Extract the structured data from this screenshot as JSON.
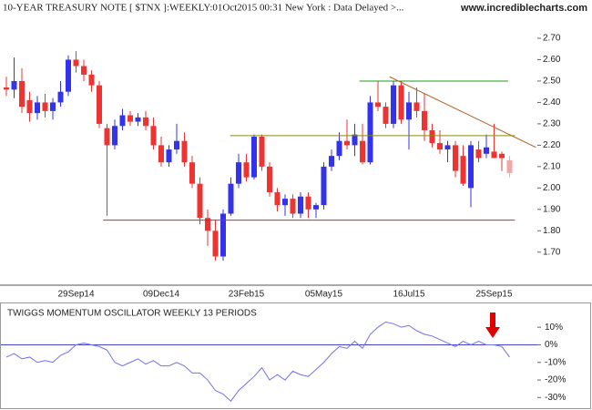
{
  "header": {
    "title": "10-YEAR TREASURY NOTE [ $TNX ]:WEEKLY:01Oct2015 00:31 New York : Data Delayed >...",
    "site": "www.incrediblecharts.com"
  },
  "chart_data": [
    {
      "type": "candlestick",
      "categories": [
        null,
        null,
        null,
        null,
        null,
        null,
        null,
        null,
        null,
        "29Sep14",
        null,
        null,
        null,
        null,
        null,
        null,
        null,
        null,
        null,
        null,
        "09Dec14",
        null,
        null,
        null,
        null,
        null,
        null,
        null,
        null,
        null,
        null,
        "23Feb15",
        null,
        null,
        null,
        null,
        null,
        null,
        null,
        null,
        null,
        "05May15",
        null,
        null,
        null,
        null,
        null,
        null,
        null,
        null,
        null,
        null,
        "16Jul15",
        null,
        null,
        null,
        null,
        null,
        null,
        null,
        null,
        null,
        null,
        "25Sep15",
        null,
        null
      ],
      "candles": [
        [
          2.47,
          2.52,
          2.43,
          2.46
        ],
        [
          2.46,
          2.61,
          2.42,
          2.5
        ],
        [
          2.5,
          2.56,
          2.35,
          2.38
        ],
        [
          2.41,
          2.45,
          2.31,
          2.35
        ],
        [
          2.35,
          2.43,
          2.32,
          2.4
        ],
        [
          2.4,
          2.44,
          2.33,
          2.36
        ],
        [
          2.36,
          2.42,
          2.32,
          2.4
        ],
        [
          2.4,
          2.5,
          2.38,
          2.45
        ],
        [
          2.45,
          2.62,
          2.43,
          2.6
        ],
        [
          2.6,
          2.64,
          2.54,
          2.57
        ],
        [
          2.57,
          2.6,
          2.5,
          2.53
        ],
        [
          2.53,
          2.55,
          2.45,
          2.48
        ],
        [
          2.48,
          2.5,
          2.28,
          2.3
        ],
        [
          2.28,
          2.3,
          1.87,
          2.2
        ],
        [
          2.2,
          2.32,
          2.18,
          2.29
        ],
        [
          2.29,
          2.37,
          2.27,
          2.34
        ],
        [
          2.34,
          2.36,
          2.29,
          2.31
        ],
        [
          2.31,
          2.35,
          2.29,
          2.33
        ],
        [
          2.33,
          2.36,
          2.27,
          2.29
        ],
        [
          2.29,
          2.33,
          2.18,
          2.2
        ],
        [
          2.2,
          2.24,
          2.1,
          2.12
        ],
        [
          2.12,
          2.2,
          2.1,
          2.18
        ],
        [
          2.18,
          2.3,
          2.16,
          2.22
        ],
        [
          2.22,
          2.26,
          2.1,
          2.12
        ],
        [
          2.12,
          2.15,
          2.0,
          2.02
        ],
        [
          2.02,
          2.05,
          1.83,
          1.86
        ],
        [
          1.86,
          1.9,
          1.73,
          1.8
        ],
        [
          1.8,
          1.85,
          1.66,
          1.68
        ],
        [
          1.68,
          1.9,
          1.66,
          1.88
        ],
        [
          1.88,
          2.05,
          1.87,
          2.02
        ],
        [
          2.02,
          2.16,
          2.0,
          2.12
        ],
        [
          2.12,
          2.16,
          2.03,
          2.05
        ],
        [
          2.05,
          2.25,
          2.04,
          2.24
        ],
        [
          2.24,
          2.25,
          2.08,
          2.1
        ],
        [
          2.1,
          2.12,
          1.96,
          1.98
        ],
        [
          1.98,
          2.0,
          1.89,
          1.92
        ],
        [
          1.92,
          1.97,
          1.87,
          1.95
        ],
        [
          1.95,
          1.97,
          1.86,
          1.88
        ],
        [
          1.88,
          1.98,
          1.86,
          1.96
        ],
        [
          1.96,
          1.98,
          1.86,
          1.9
        ],
        [
          1.9,
          1.93,
          1.86,
          1.92
        ],
        [
          1.92,
          2.12,
          1.9,
          2.1
        ],
        [
          2.1,
          2.18,
          2.08,
          2.15
        ],
        [
          2.15,
          2.26,
          2.13,
          2.22
        ],
        [
          2.22,
          2.32,
          2.18,
          2.2
        ],
        [
          2.2,
          2.3,
          2.15,
          2.25
        ],
        [
          2.22,
          2.3,
          2.11,
          2.12
        ],
        [
          2.12,
          2.43,
          2.11,
          2.4
        ],
        [
          2.4,
          2.5,
          2.36,
          2.38
        ],
        [
          2.38,
          2.4,
          2.28,
          2.3
        ],
        [
          2.3,
          2.5,
          2.28,
          2.48
        ],
        [
          2.48,
          2.5,
          2.3,
          2.32
        ],
        [
          2.32,
          2.45,
          2.18,
          2.4
        ],
        [
          2.4,
          2.47,
          2.33,
          2.36
        ],
        [
          2.36,
          2.44,
          2.22,
          2.27
        ],
        [
          2.27,
          2.3,
          2.19,
          2.21
        ],
        [
          2.21,
          2.27,
          2.16,
          2.18
        ],
        [
          2.18,
          2.22,
          2.12,
          2.2
        ],
        [
          2.2,
          2.22,
          2.05,
          2.08
        ],
        [
          2.15,
          2.2,
          2.01,
          2.02
        ],
        [
          2.0,
          2.22,
          1.91,
          2.2
        ],
        [
          2.18,
          2.22,
          2.12,
          2.14
        ],
        [
          2.16,
          2.25,
          2.14,
          2.19
        ],
        [
          2.17,
          2.3,
          2.14,
          2.14
        ],
        [
          2.16,
          2.17,
          2.08,
          2.14
        ],
        [
          2.13,
          2.15,
          2.05,
          2.07
        ]
      ],
      "up_color": "#3333ee",
      "down_color": "#ee3333",
      "partial_color": "#f4a6a6",
      "ylim": [
        1.55,
        2.815
      ],
      "yticks": [
        {
          "value": 1.7,
          "label": "1.70"
        },
        {
          "value": 1.8,
          "label": "1.80"
        },
        {
          "value": 1.9,
          "label": "1.90"
        },
        {
          "value": 2.0,
          "label": "2.00"
        },
        {
          "value": 2.1,
          "label": "2.10"
        },
        {
          "value": 2.2,
          "label": "2.20"
        },
        {
          "value": 2.3,
          "label": "2.30"
        },
        {
          "value": 2.4,
          "label": "2.40"
        },
        {
          "value": 2.5,
          "label": "2.50"
        },
        {
          "value": 2.6,
          "label": "2.60"
        },
        {
          "value": 2.7,
          "label": "2.70"
        }
      ],
      "lines": [
        {
          "color": "#dd2222",
          "from": [
            12.5,
            1.85
          ],
          "to": [
            65.7,
            1.85
          ]
        },
        {
          "color": "#8a8a10",
          "from": [
            28.9,
            2.245
          ],
          "to": [
            65.7,
            2.245
          ]
        },
        {
          "color": "#1a9a1a",
          "from": [
            45.6,
            2.5
          ],
          "to": [
            64.8,
            2.5
          ]
        },
        {
          "color": "#b8642a",
          "from": [
            49.5,
            2.52
          ],
          "to": [
            68.4,
            2.19
          ]
        }
      ]
    },
    {
      "type": "line",
      "title": "TWIGGS MOMENTUM OSCILLATOR WEEKLY 13 PERIODS",
      "values": [
        -7,
        -5,
        -8,
        -7,
        -10,
        -9,
        -10,
        -6,
        -4,
        0,
        1,
        0,
        -1,
        -3,
        -10,
        -12,
        -10,
        -8,
        -11,
        -9,
        -12,
        -12,
        -10,
        -12,
        -16,
        -16,
        -20,
        -26,
        -28,
        -32,
        -26,
        -22,
        -18,
        -13,
        -20,
        -17,
        -20,
        -15,
        -17,
        -18,
        -14,
        -10,
        -5,
        -1,
        -2,
        2,
        -2,
        6,
        10,
        13,
        12,
        10,
        11,
        8,
        6,
        5,
        3,
        1,
        -1,
        2,
        0,
        2,
        0,
        0,
        -1,
        -7
      ],
      "color": "#7070ee",
      "reference_line": 0,
      "reference_color": "#4444cc",
      "ylim": [
        -35,
        22
      ],
      "yticks": [
        {
          "value": 10,
          "label": "10%"
        },
        {
          "value": 0,
          "label": "0%"
        },
        {
          "value": -10,
          "label": "-10%"
        },
        {
          "value": -20,
          "label": "-20%"
        },
        {
          "value": -30,
          "label": "-30%"
        }
      ]
    }
  ]
}
